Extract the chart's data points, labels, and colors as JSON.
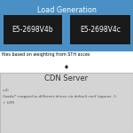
{
  "title_load": "Load Generation",
  "box1_label": "E5-2698V4b",
  "box2_label": "E5-2698V4c",
  "arrow_text": "files based on weighting from STH acces",
  "cdn_label": "CDN Server",
  "cdn_sub1": "c:4)",
  "cdn_sub2": "/loads/* mapped to different drives via default conf (approx. 1:",
  "cdn_sub3": "+ LVM",
  "load_gen_bg": "#4a90c4",
  "load_gen_title_color": "#ffffff",
  "box_bg": "#1a1a1a",
  "box_text_color": "#ffffff",
  "arrow_text_color": "#000000",
  "cdn_bg": "#d4d4d4",
  "cdn_title_color": "#333333",
  "cdn_sub_color": "#555555",
  "bg_color": "#ffffff",
  "figsize": [
    1.5,
    1.5
  ],
  "dpi": 100
}
